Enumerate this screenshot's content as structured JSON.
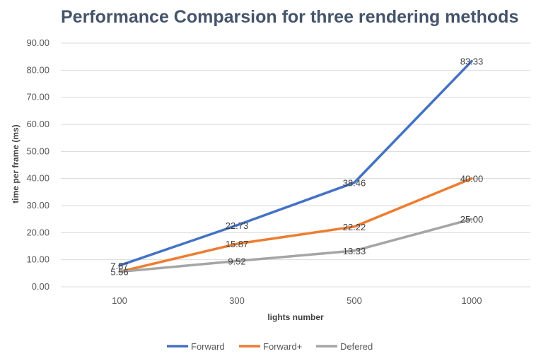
{
  "chart_data": {
    "type": "line",
    "title": "Performance Comparsion for three rendering methods",
    "xlabel": "lights number",
    "ylabel": "time per frame (ms)",
    "categories": [
      "100",
      "300",
      "500",
      "1000"
    ],
    "ylim": [
      0,
      90
    ],
    "yticks": [
      "0.00",
      "10.00",
      "20.00",
      "30.00",
      "40.00",
      "50.00",
      "60.00",
      "70.00",
      "80.00",
      "90.00"
    ],
    "grid": true,
    "legend_position": "bottom",
    "series": [
      {
        "name": "Forward",
        "color": "#4472c4",
        "values": [
          7.87,
          22.73,
          38.46,
          83.33
        ],
        "labels": [
          "7.87",
          "22.73",
          "38.46",
          "83.33"
        ]
      },
      {
        "name": "Forward+",
        "color": "#ed7d31",
        "values": [
          5.56,
          15.87,
          22.22,
          40.0
        ],
        "labels": [
          "",
          "15.87",
          "22.22",
          "40.00"
        ]
      },
      {
        "name": "Defered",
        "color": "#a5a5a5",
        "values": [
          5.56,
          9.52,
          13.33,
          25.0
        ],
        "labels": [
          "5.56",
          "9.52",
          "13.33",
          "25.00"
        ]
      }
    ]
  }
}
